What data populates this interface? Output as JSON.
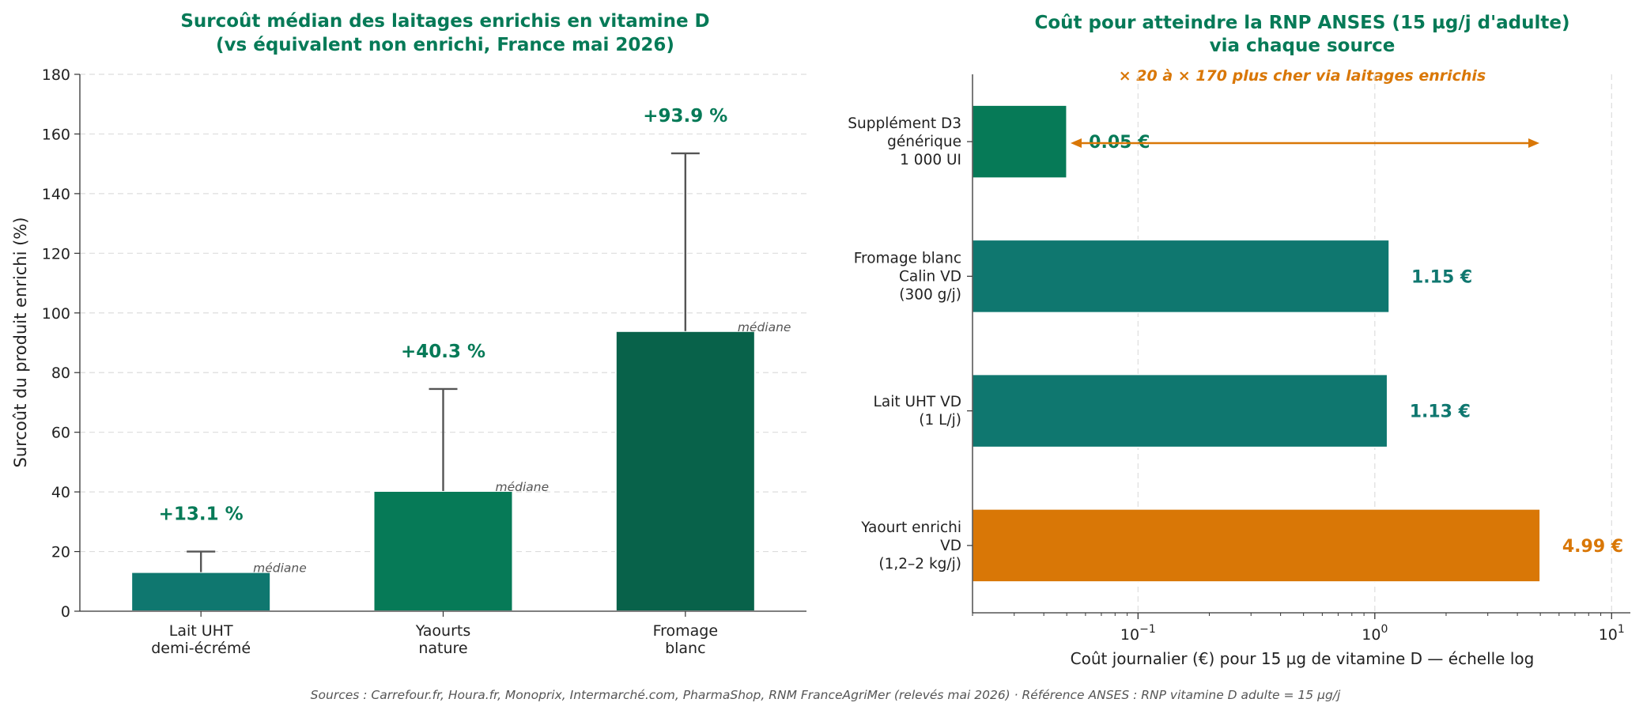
{
  "colors": {
    "green_dark": "#08624a",
    "green": "#067a57",
    "teal": "#0f776f",
    "orange": "#d97706",
    "title": "#067a57",
    "axis": "#333333",
    "grid": "#d9d9d9",
    "muted": "#555555"
  },
  "chart_data": [
    {
      "type": "bar",
      "title": "Surcoût médian des laitages enrichis en vitamine D",
      "subtitle": "(vs équivalent non enrichi, France mai 2026)",
      "xlabel": "",
      "ylabel": "Surcoût du produit enrichi (%)",
      "ylim": [
        0,
        180
      ],
      "yticks": [
        0,
        20,
        40,
        60,
        80,
        100,
        120,
        140,
        160,
        180
      ],
      "grid": "y-dashed",
      "categories": [
        [
          "Lait UHT",
          "demi-écrémé"
        ],
        [
          "Yaourts",
          "nature"
        ],
        [
          "Fromage",
          "blanc"
        ]
      ],
      "values": [
        13.1,
        40.3,
        93.9
      ],
      "error_upper": [
        20,
        74.5,
        153.5
      ],
      "bar_labels": [
        "+13.1 %",
        "+40.3 %",
        "+93.9 %"
      ],
      "median_label": "médiane",
      "colors": [
        "#0f776f",
        "#067a57",
        "#08624a"
      ]
    },
    {
      "type": "bar",
      "orientation": "horizontal",
      "title": "Coût pour atteindre la RNP ANSES (15 µg/j d'adulte)",
      "subtitle": "via chaque source",
      "annotation": "× 20 à × 170 plus cher via laitages enrichis",
      "xlabel": "Coût journalier (€) pour 15 µg de vitamine D — échelle log",
      "xscale": "log",
      "xlim": [
        0.02,
        12
      ],
      "xticks": [
        "10−1",
        "100",
        "101"
      ],
      "categories": [
        [
          "Supplément D3",
          "générique",
          "1 000 UI"
        ],
        [
          "Fromage blanc",
          "Calin VD",
          "(300 g/j)"
        ],
        [
          "Lait UHT VD",
          "(1 L/j)"
        ],
        [
          "Yaourt enrichi",
          "VD",
          "(1,2–2 kg/j)"
        ]
      ],
      "values": [
        0.05,
        1.15,
        1.13,
        4.99
      ],
      "bar_labels": [
        "0.05 €",
        "1.15 €",
        "1.13 €",
        "4.99 €"
      ],
      "colors": [
        "#067a57",
        "#0f776f",
        "#0f776f",
        "#d97706"
      ]
    }
  ],
  "footer": {
    "sources": "Sources : Carrefour.fr, Houra.fr, Monoprix, Intermarché.com, PharmaShop, RNM FranceAgriMer (relevés mai 2026)  ·  Référence ANSES : RNP vitamine D adulte = 15 µg/j"
  }
}
